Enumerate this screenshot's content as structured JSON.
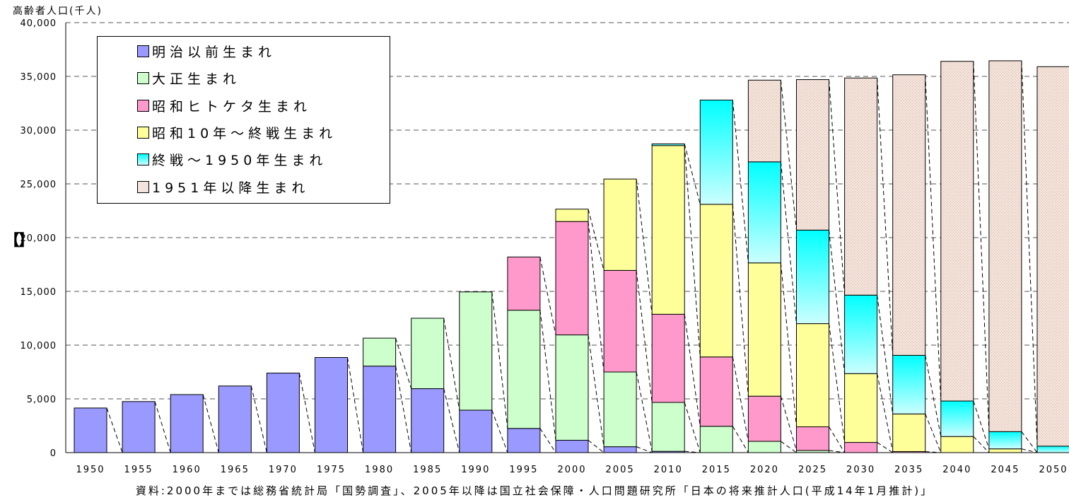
{
  "chart_data": {
    "type": "bar",
    "stacked": true,
    "ylabel": "高齢者人口(千人)",
    "source": "資料:2000年までは総務省統計局「国勢調査」、2005年以降は国立社会保障・人口問題研究所「日本の将来推計人口(平成14年1月推計)」",
    "side_mark": "【】",
    "ylim": [
      0,
      40000
    ],
    "yticks": [
      "0",
      "5,000",
      "10,000",
      "15,000",
      "20,000",
      "25,000",
      "30,000",
      "35,000",
      "40,000"
    ],
    "categories": [
      "1950",
      "1955",
      "1960",
      "1965",
      "1970",
      "1975",
      "1980",
      "1985",
      "1990",
      "1995",
      "2000",
      "2005",
      "2010",
      "2015",
      "2020",
      "2025",
      "2030",
      "2035",
      "2040",
      "2045",
      "2050"
    ],
    "series": [
      {
        "name": "明治以前生まれ",
        "color": "#9999ff",
        "values": [
          4150,
          4750,
          5400,
          6200,
          7400,
          8850,
          8050,
          5950,
          3950,
          2250,
          1150,
          550,
          120,
          0,
          0,
          0,
          0,
          0,
          0,
          0,
          0
        ]
      },
      {
        "name": "大正生まれ",
        "color": "#ccffcc",
        "values": [
          0,
          0,
          0,
          0,
          0,
          0,
          2600,
          6550,
          11000,
          11000,
          9800,
          6950,
          4550,
          2450,
          1050,
          200,
          0,
          0,
          0,
          0,
          0
        ]
      },
      {
        "name": "昭和ヒトケタ生まれ",
        "color": "#ff99cc",
        "values": [
          0,
          0,
          0,
          0,
          0,
          0,
          0,
          0,
          0,
          4950,
          10550,
          9450,
          8200,
          6450,
          4200,
          2200,
          950,
          100,
          0,
          0,
          0
        ]
      },
      {
        "name": "昭和10年～終戦生まれ",
        "color": "#ffff99",
        "values": [
          0,
          0,
          0,
          0,
          0,
          0,
          0,
          0,
          0,
          0,
          1150,
          8500,
          15700,
          14200,
          12400,
          9600,
          6400,
          3500,
          1500,
          350,
          0
        ]
      },
      {
        "name": "終戦～1950年生まれ",
        "color": "#00ffff",
        "values": [
          0,
          0,
          0,
          0,
          0,
          0,
          0,
          0,
          0,
          0,
          0,
          0,
          150,
          9700,
          9400,
          8700,
          7300,
          5450,
          3300,
          1600,
          600
        ]
      },
      {
        "name": "1951年以降生まれ",
        "color": "#f2e0d8",
        "values": [
          0,
          0,
          0,
          0,
          0,
          0,
          0,
          0,
          0,
          0,
          0,
          0,
          0,
          0,
          7600,
          14000,
          20200,
          26100,
          31600,
          34500,
          35300
        ]
      }
    ]
  }
}
